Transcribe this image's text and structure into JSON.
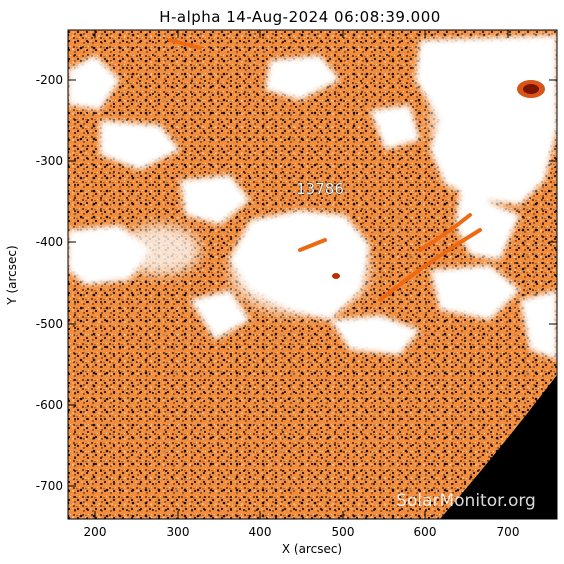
{
  "title": "H-alpha 14-Aug-2024 06:08:39.000",
  "active_region": "13786",
  "watermark": "SolarMonitor.org",
  "axes": {
    "xlabel": "X (arcsec)",
    "ylabel": "Y (arcsec)",
    "x_ticks": [
      "200",
      "300",
      "400",
      "500",
      "600",
      "700"
    ],
    "y_ticks": [
      "-200",
      "-300",
      "-400",
      "-500",
      "-600",
      "-700"
    ],
    "x_range": [
      168,
      762
    ],
    "y_range": [
      -745,
      -140
    ]
  },
  "colors": {
    "plage": "#ffffff",
    "chromosphere": "#f08a3a",
    "dark_fibrils": "#1a0e06",
    "sunspot": "#8b1a00",
    "space": "#000000"
  }
}
